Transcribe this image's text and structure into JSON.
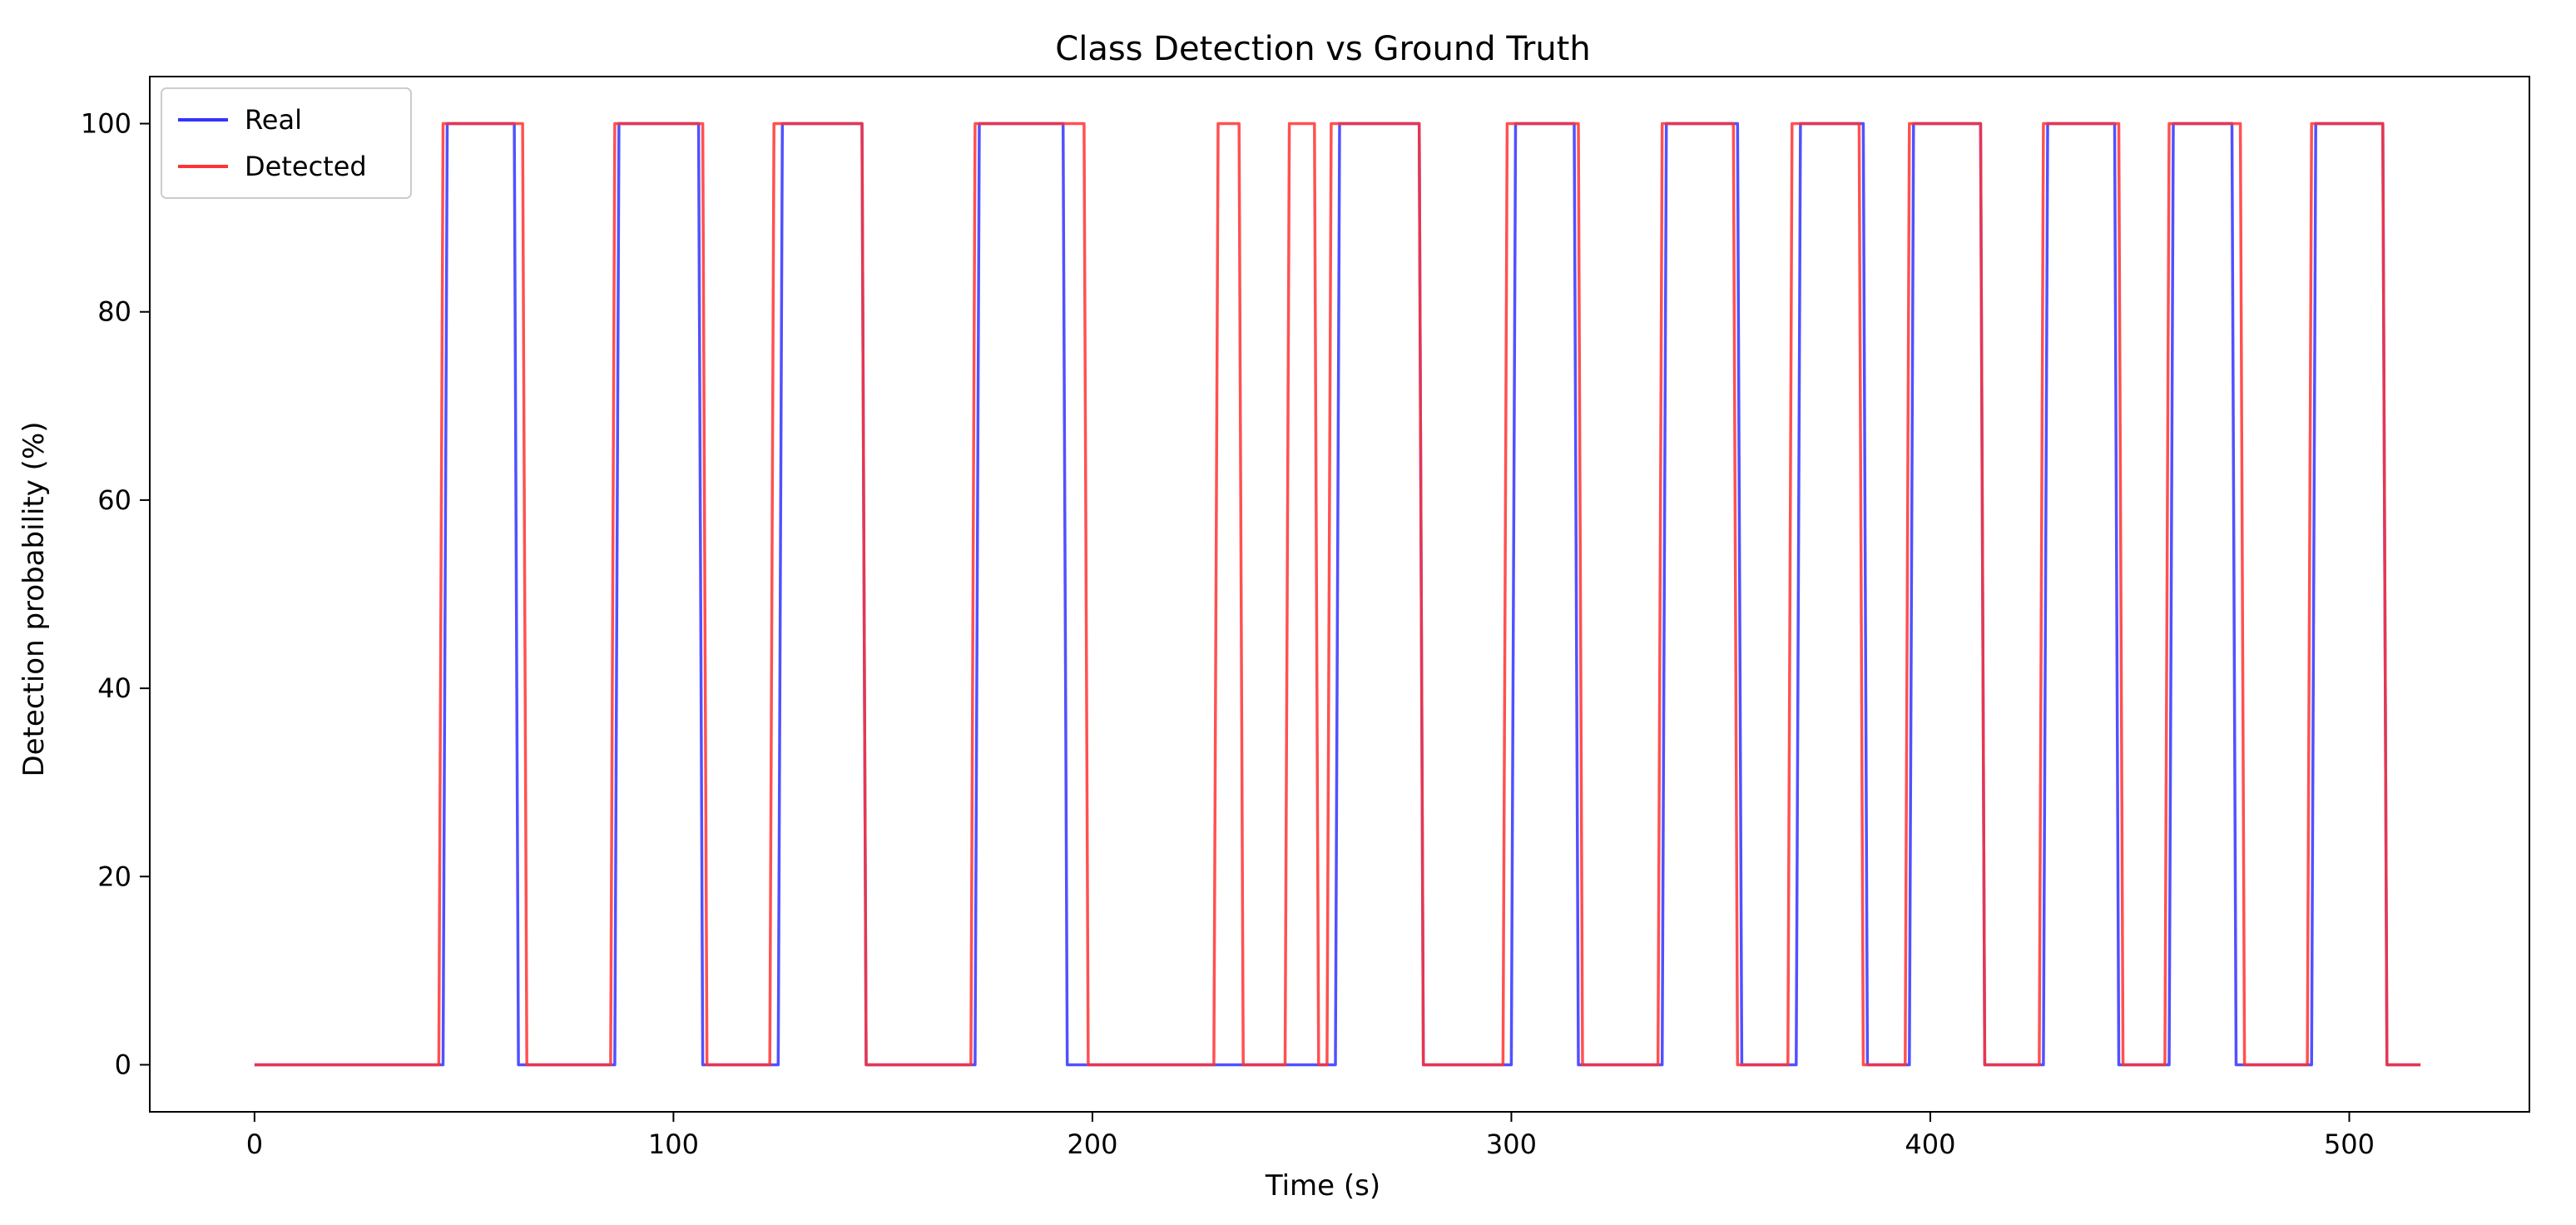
{
  "chart_data": {
    "type": "line",
    "title": "Class Detection vs Ground Truth",
    "xlabel": "Time (s)",
    "ylabel": "Detection probability (%)",
    "xlim": [
      -25,
      543
    ],
    "ylim": [
      -5,
      105
    ],
    "xticks": [
      0,
      100,
      200,
      300,
      400,
      500
    ],
    "yticks": [
      0,
      20,
      40,
      60,
      80,
      100
    ],
    "grid": false,
    "legend_position": "top-left",
    "series": [
      {
        "name": "Real",
        "color": "#3333ff",
        "step": true,
        "intervals_on": [
          [
            45,
            62
          ],
          [
            86,
            106
          ],
          [
            125,
            145
          ],
          [
            172,
            193
          ],
          [
            258,
            278
          ],
          [
            300,
            315
          ],
          [
            336,
            354
          ],
          [
            368,
            384
          ],
          [
            395,
            412
          ],
          [
            427,
            444
          ],
          [
            457,
            472
          ],
          [
            491,
            508
          ]
        ],
        "x_range": [
          0,
          517
        ],
        "low": 0,
        "high": 100
      },
      {
        "name": "Detected",
        "color": "#ff3333",
        "step": true,
        "intervals_on": [
          [
            44,
            64
          ],
          [
            85,
            107
          ],
          [
            123,
            145
          ],
          [
            171,
            198
          ],
          [
            229,
            235
          ],
          [
            246,
            253
          ],
          [
            256,
            278
          ],
          [
            298,
            316
          ],
          [
            335,
            353
          ],
          [
            366,
            383
          ],
          [
            394,
            412
          ],
          [
            426,
            445
          ],
          [
            456,
            474
          ],
          [
            490,
            508
          ]
        ],
        "x_range": [
          0,
          517
        ],
        "low": 0,
        "high": 100
      }
    ]
  }
}
